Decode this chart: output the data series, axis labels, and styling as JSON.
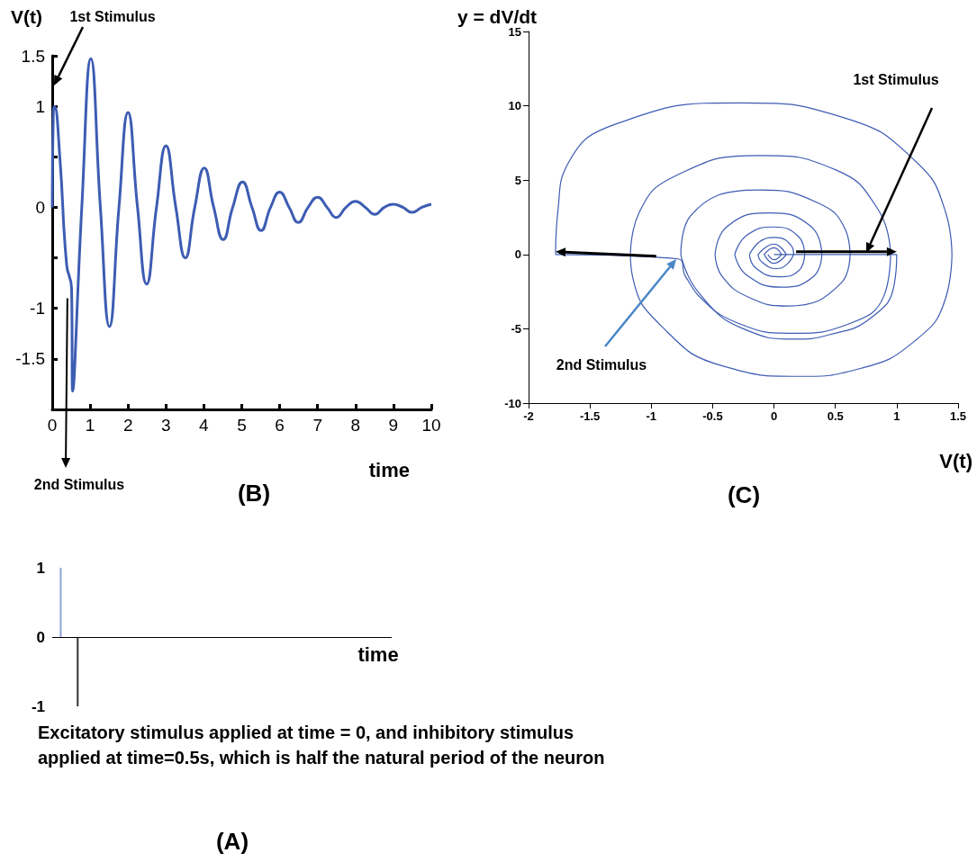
{
  "chart_data": [
    {
      "type": "line",
      "title": "(B)",
      "xlabel": "time",
      "ylabel": "V(t)",
      "grid": false,
      "marker": "none",
      "annotations": [
        "1st Stimulus",
        {
          "text": "2nd Stimulus",
          "x": 0.4,
          "y": -0.9
        }
      ],
      "xlim": [
        0,
        10
      ],
      "xticks": [
        0,
        1,
        2,
        3,
        4,
        5,
        6,
        7,
        8,
        9,
        10
      ],
      "ylim": [
        -2,
        1.5
      ],
      "yticks": [
        {
          "value": -2,
          "label": null
        },
        -1.5,
        -1,
        {
          "value": -0.5,
          "label": null
        },
        0,
        {
          "value": 0.5,
          "label": null
        },
        1,
        1.5
      ],
      "series": [
        {
          "color": "#3d5cb3",
          "x": [
            0,
            0.03,
            0.06,
            0.2,
            0.38,
            0.51,
            0.54,
            0.78,
            1.02,
            1.27,
            1.51,
            1.76,
            2.0,
            2.25,
            2.49,
            2.75,
            3.0,
            3.26,
            3.51,
            3.76,
            4.01,
            4.26,
            4.51,
            4.76,
            5.02,
            5.27,
            5.51,
            5.76,
            6.0,
            6.25,
            6.49,
            6.75,
            7.0,
            7.25,
            7.49,
            7.75,
            8.0,
            8.26,
            8.51,
            8.76,
            9.0,
            9.25,
            9.49,
            9.75,
            10
          ],
          "values": [
            0,
            0.95,
            1.0,
            0.5,
            -0.57,
            -0.8,
            -1.82,
            0,
            1.47,
            0,
            -1.18,
            0,
            0.94,
            0,
            -0.76,
            0,
            0.61,
            0,
            -0.5,
            0,
            0.39,
            0,
            -0.32,
            0,
            0.25,
            0,
            -0.23,
            0,
            0.15,
            0,
            -0.15,
            0,
            0.1,
            0,
            -0.1,
            0,
            0.06,
            0,
            -0.07,
            0,
            0.03,
            0,
            -0.05,
            0,
            0.03
          ]
        }
      ]
    },
    {
      "type": "line",
      "title": "(C)",
      "xlabel": "V(t)",
      "ylabel": "y = dV/dt",
      "grid": false,
      "marker": "none",
      "annotations": [
        "1st Stimulus",
        "2nd Stimulus"
      ],
      "xlim": [
        -2,
        1.5
      ],
      "xticks": [
        -2,
        -1.5,
        -1,
        -0.5,
        0,
        0.5,
        1,
        1.5
      ],
      "ylim": [
        -10,
        15
      ],
      "yticks": [
        -10,
        -5,
        0,
        5,
        10,
        15
      ],
      "series": [
        {
          "color": "#3d5cb3",
          "x": [
            0,
            1
          ],
          "values": [
            0,
            0
          ]
        },
        {
          "color": "#3d5cb3",
          "x": [
            1,
            0.98,
            0.8,
            0.45,
            0.16,
            -0.25,
            -0.55,
            -0.72,
            -0.78,
            -1.78
          ],
          "values": [
            0,
            -2,
            -4.2,
            -5.4,
            -5.7,
            -5,
            -3.3,
            -1.5,
            -0.3,
            0
          ]
        },
        {
          "color": "#3d5cb3",
          "x": [
            -1.78,
            -1.76,
            -1.68,
            -1.28,
            -0.27,
            0.57,
            1.15,
            1.4,
            1.45
          ],
          "values": [
            0,
            3,
            6.1,
            8.8,
            10.2,
            9.2,
            6.3,
            2.8,
            0
          ]
        },
        {
          "color": "#3d5cb3",
          "x": [
            1.45,
            1.4,
            1.15,
            0.69,
            0.21,
            -0.42,
            -0.92,
            -1.15,
            -1.17
          ],
          "values": [
            0,
            -2.9,
            -5.8,
            -7.7,
            -8.2,
            -7.5,
            -4.8,
            -1.6,
            0
          ]
        },
        {
          "color": "#3d5cb3",
          "x": [
            -1.17,
            -1.1,
            -0.8,
            -0.12,
            0.5,
            0.85,
            0.95
          ],
          "values": [
            0,
            2.8,
            5.3,
            6.66,
            5.7,
            3,
            0
          ]
        },
        {
          "color": "#3d5cb3",
          "x": [
            0.95,
            0.9,
            0.6,
            0.16,
            -0.3,
            -0.62,
            -0.76
          ],
          "values": [
            0,
            -2.7,
            -4.7,
            -5.3,
            -4.6,
            -2.5,
            0
          ]
        },
        {
          "color": "#3d5cb3",
          "x": [
            -0.76,
            -0.68,
            -0.12,
            0.35,
            0.58,
            0.62
          ],
          "values": [
            0,
            2.6,
            4.34,
            3.5,
            1.7,
            0
          ]
        },
        {
          "color": "#3d5cb3",
          "x": [
            0.62,
            0.55,
            0.11,
            -0.2,
            -0.42,
            -0.48
          ],
          "values": [
            0,
            -1.9,
            -3.47,
            -2.9,
            -1.5,
            0
          ]
        },
        {
          "color": "#3d5cb3",
          "x": [
            -0.48,
            -0.38,
            -0.04,
            0.3,
            0.39
          ],
          "values": [
            0,
            1.9,
            2.8,
            1.9,
            0
          ]
        },
        {
          "color": "#3d5cb3",
          "x": [
            0.39,
            0.32,
            0.06,
            -0.22,
            -0.32
          ],
          "values": [
            0,
            -1.5,
            -2.2,
            -1.4,
            0
          ]
        },
        {
          "color": "#3d5cb3",
          "x": [
            -0.32,
            -0.22,
            0,
            0.2,
            0.25
          ],
          "values": [
            0,
            1.3,
            1.85,
            1.2,
            0
          ]
        },
        {
          "color": "#3d5cb3",
          "x": [
            0.25,
            0.2,
            0.04,
            -0.15,
            -0.2
          ],
          "values": [
            0,
            -1.1,
            -1.5,
            -0.9,
            0
          ]
        },
        {
          "color": "#3d5cb3",
          "x": [
            -0.2,
            -0.1,
            0.01,
            0.14,
            0.16
          ],
          "values": [
            0,
            0.95,
            1.15,
            0.6,
            0
          ]
        },
        {
          "color": "#3d5cb3",
          "x": [
            0.16,
            0.1,
            0.02,
            -0.1,
            -0.13
          ],
          "values": [
            0,
            -0.7,
            -0.95,
            -0.5,
            0
          ]
        },
        {
          "color": "#3d5cb3",
          "x": [
            -0.13,
            0,
            0.1
          ],
          "values": [
            0,
            0.7,
            0
          ]
        },
        {
          "color": "#3d5cb3",
          "x": [
            0.1,
            0,
            -0.08
          ],
          "values": [
            0,
            -0.6,
            0
          ]
        },
        {
          "color": "#3d5cb3",
          "x": [
            -0.08,
            0,
            0.06
          ],
          "values": [
            0,
            0.45,
            0
          ]
        },
        {
          "color": "#3d5cb3",
          "x": [
            0.06,
            0,
            -0.05
          ],
          "values": [
            0,
            -0.35,
            0
          ]
        }
      ]
    },
    {
      "type": "bar",
      "title": "(A)",
      "xlabel": "time",
      "grid": false,
      "tick_labels": "y",
      "ref_lines": [
        {
          "axis": "y",
          "value": 0,
          "color": "#000000"
        }
      ],
      "annotations": [
        "Excitatory stimulus applied at time = 0, and inhibitory stimulus applied at time=0.5s, which is half the natural period of the neuron"
      ],
      "categories": [
        null,
        null,
        null,
        null,
        null,
        null,
        null,
        null,
        null,
        null,
        null,
        null,
        null,
        null,
        null,
        null,
        null,
        null,
        null,
        null
      ],
      "ylim": [
        -1,
        1
      ],
      "yticks": [
        -1,
        0,
        1
      ],
      "series": [
        {
          "color": "#8ea3d9",
          "values": [
            1,
            null,
            null,
            null,
            null,
            null,
            null,
            null,
            null,
            null,
            null,
            null,
            null,
            null,
            null,
            null,
            null,
            null,
            null,
            null
          ]
        },
        {
          "color": "#333333",
          "values": [
            null,
            -1,
            null,
            null,
            null,
            null,
            null,
            null,
            null,
            null,
            null,
            null,
            null,
            null,
            null,
            null,
            null,
            null,
            null,
            null
          ]
        }
      ]
    }
  ]
}
